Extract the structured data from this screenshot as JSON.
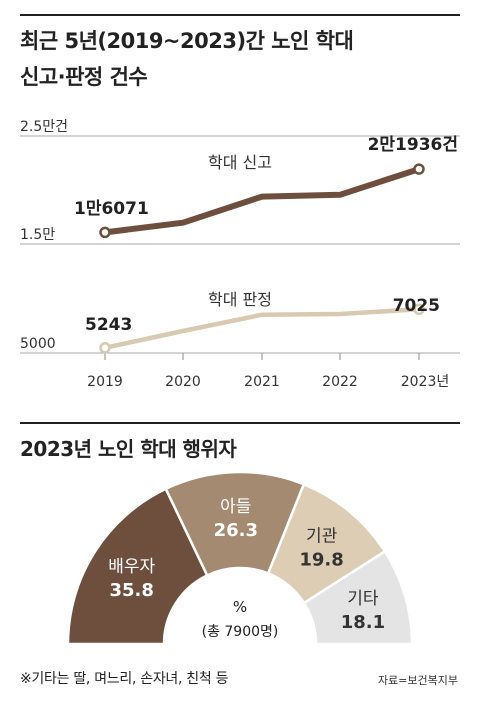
{
  "title_line1": "최근 5년(2019~2023)간 노인 학대",
  "title_line2": "신고·판정 건수",
  "title2": "2023년 노인 학대 행위자",
  "footnote": "※기타는 딸, 며느리, 손자녀, 친척 등",
  "source": "자료=보건복지부",
  "colors": {
    "report": "#6e4f3e",
    "judgment": "#d8c9b0",
    "spouse": "#6e4f3e",
    "son": "#a38a70",
    "institution": "#dccdb4",
    "other": "#e4e4e4"
  },
  "chart_data": [
    {
      "type": "line",
      "x": [
        2019,
        2020,
        2021,
        2022,
        2023
      ],
      "x_tick_labels": [
        "2019",
        "2020",
        "2021",
        "2022",
        "2023년"
      ],
      "y_tick_labels_top": [
        "2.5만건",
        "1.5만"
      ],
      "y_tick_labels_bottom": [
        "5000"
      ],
      "series": [
        {
          "name": "학대 신고",
          "values": [
            16071,
            16973,
            19391,
            19552,
            21936
          ],
          "labels": [
            "1만6071",
            "",
            "",
            "",
            "2만1936건"
          ]
        },
        {
          "name": "학대 판정",
          "values": [
            5243,
            6020,
            6774,
            6807,
            7025
          ],
          "labels": [
            "5243",
            "",
            "",
            "",
            "7025"
          ]
        }
      ],
      "axis_break": true
    },
    {
      "type": "pie",
      "shape": "semicircle-donut",
      "unit_label": "%",
      "total_label": "(총 7900명)",
      "slices": [
        {
          "name": "배우자",
          "value": 35.8,
          "value_label": "35.8"
        },
        {
          "name": "아들",
          "value": 26.3,
          "value_label": "26.3"
        },
        {
          "name": "기관",
          "value": 19.8,
          "value_label": "19.8"
        },
        {
          "name": "기타",
          "value": 18.1,
          "value_label": "18.1"
        }
      ]
    }
  ]
}
